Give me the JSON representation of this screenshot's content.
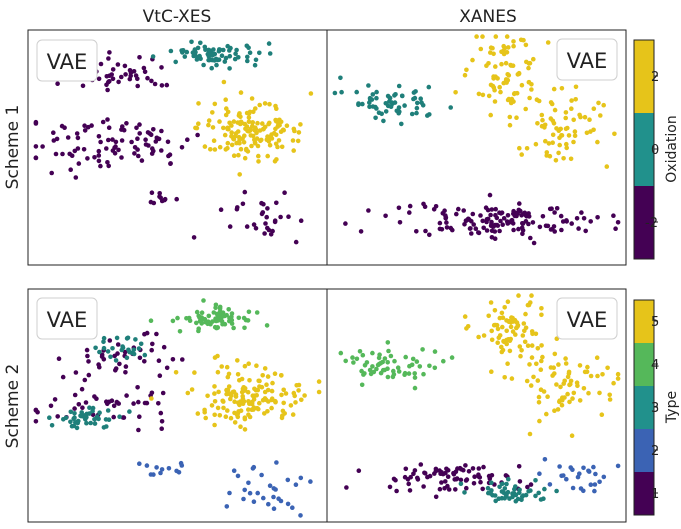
{
  "columns": [
    "VtC-XES",
    "XANES"
  ],
  "rows": [
    "Scheme 1",
    "Scheme 2"
  ],
  "panel_label": "VAE",
  "colorbars": [
    {
      "label": "Oxidation",
      "ticks": [
        "2",
        "0",
        "-2"
      ],
      "colors": [
        "#440154",
        "#21918c",
        "#e6c41a"
      ]
    },
    {
      "label": "Type",
      "ticks": [
        "5",
        "4",
        "3",
        "2",
        "1"
      ],
      "colors": [
        "#440154",
        "#3b63b4",
        "#21918c",
        "#55b85a",
        "#e6c41a"
      ]
    }
  ],
  "colors": {
    "purple": "#440154",
    "teal": "#1f7f7a",
    "blue": "#3b63b4",
    "green": "#55b85a",
    "yellow": "#e6c41a"
  },
  "chart_data": [
    {
      "type": "scatter",
      "title": "VtC-XES",
      "ylabel": "Scheme 1",
      "clusters": [
        {
          "color": "purple",
          "n": 55,
          "cx": 0.3,
          "cy": 0.18,
          "sx": 0.1,
          "sy": 0.035
        },
        {
          "color": "purple",
          "n": 90,
          "cx": 0.25,
          "cy": 0.48,
          "sx": 0.15,
          "sy": 0.06
        },
        {
          "color": "purple",
          "n": 10,
          "cx": 0.45,
          "cy": 0.72,
          "sx": 0.04,
          "sy": 0.02
        },
        {
          "color": "purple",
          "n": 30,
          "cx": 0.8,
          "cy": 0.82,
          "sx": 0.07,
          "sy": 0.06
        },
        {
          "color": "teal",
          "n": 70,
          "cx": 0.62,
          "cy": 0.1,
          "sx": 0.07,
          "sy": 0.025
        },
        {
          "color": "yellow",
          "n": 150,
          "cx": 0.75,
          "cy": 0.42,
          "sx": 0.09,
          "sy": 0.06
        }
      ]
    },
    {
      "type": "scatter",
      "title": "XANES",
      "ylabel": "Scheme 1",
      "clusters": [
        {
          "color": "teal",
          "n": 60,
          "cx": 0.22,
          "cy": 0.3,
          "sx": 0.08,
          "sy": 0.04
        },
        {
          "color": "yellow",
          "n": 80,
          "cx": 0.6,
          "cy": 0.18,
          "sx": 0.06,
          "sy": 0.08
        },
        {
          "color": "yellow",
          "n": 70,
          "cx": 0.78,
          "cy": 0.4,
          "sx": 0.08,
          "sy": 0.09
        },
        {
          "color": "purple",
          "n": 140,
          "cx": 0.58,
          "cy": 0.82,
          "sx": 0.18,
          "sy": 0.04
        }
      ]
    },
    {
      "type": "scatter",
      "title": "VtC-XES",
      "ylabel": "Scheme 2",
      "clusters": [
        {
          "color": "purple",
          "n": 40,
          "cx": 0.28,
          "cy": 0.28,
          "sx": 0.1,
          "sy": 0.05
        },
        {
          "color": "teal",
          "n": 25,
          "cx": 0.3,
          "cy": 0.25,
          "sx": 0.04,
          "sy": 0.03
        },
        {
          "color": "purple",
          "n": 45,
          "cx": 0.25,
          "cy": 0.5,
          "sx": 0.14,
          "sy": 0.05
        },
        {
          "color": "teal",
          "n": 45,
          "cx": 0.2,
          "cy": 0.55,
          "sx": 0.06,
          "sy": 0.025
        },
        {
          "color": "blue",
          "n": 12,
          "cx": 0.46,
          "cy": 0.78,
          "sx": 0.04,
          "sy": 0.02
        },
        {
          "color": "blue",
          "n": 30,
          "cx": 0.8,
          "cy": 0.88,
          "sx": 0.07,
          "sy": 0.05
        },
        {
          "color": "green",
          "n": 70,
          "cx": 0.62,
          "cy": 0.12,
          "sx": 0.07,
          "sy": 0.025
        },
        {
          "color": "yellow",
          "n": 150,
          "cx": 0.75,
          "cy": 0.46,
          "sx": 0.09,
          "sy": 0.06
        }
      ]
    },
    {
      "type": "scatter",
      "title": "XANES",
      "ylabel": "Scheme 2",
      "clusters": [
        {
          "color": "green",
          "n": 60,
          "cx": 0.2,
          "cy": 0.32,
          "sx": 0.08,
          "sy": 0.04
        },
        {
          "color": "yellow",
          "n": 80,
          "cx": 0.62,
          "cy": 0.16,
          "sx": 0.06,
          "sy": 0.08
        },
        {
          "color": "yellow",
          "n": 70,
          "cx": 0.8,
          "cy": 0.4,
          "sx": 0.08,
          "sy": 0.09
        },
        {
          "color": "purple",
          "n": 80,
          "cx": 0.42,
          "cy": 0.82,
          "sx": 0.12,
          "sy": 0.03
        },
        {
          "color": "teal",
          "n": 50,
          "cx": 0.6,
          "cy": 0.88,
          "sx": 0.06,
          "sy": 0.025
        },
        {
          "color": "blue",
          "n": 25,
          "cx": 0.82,
          "cy": 0.8,
          "sx": 0.06,
          "sy": 0.035
        }
      ]
    }
  ]
}
